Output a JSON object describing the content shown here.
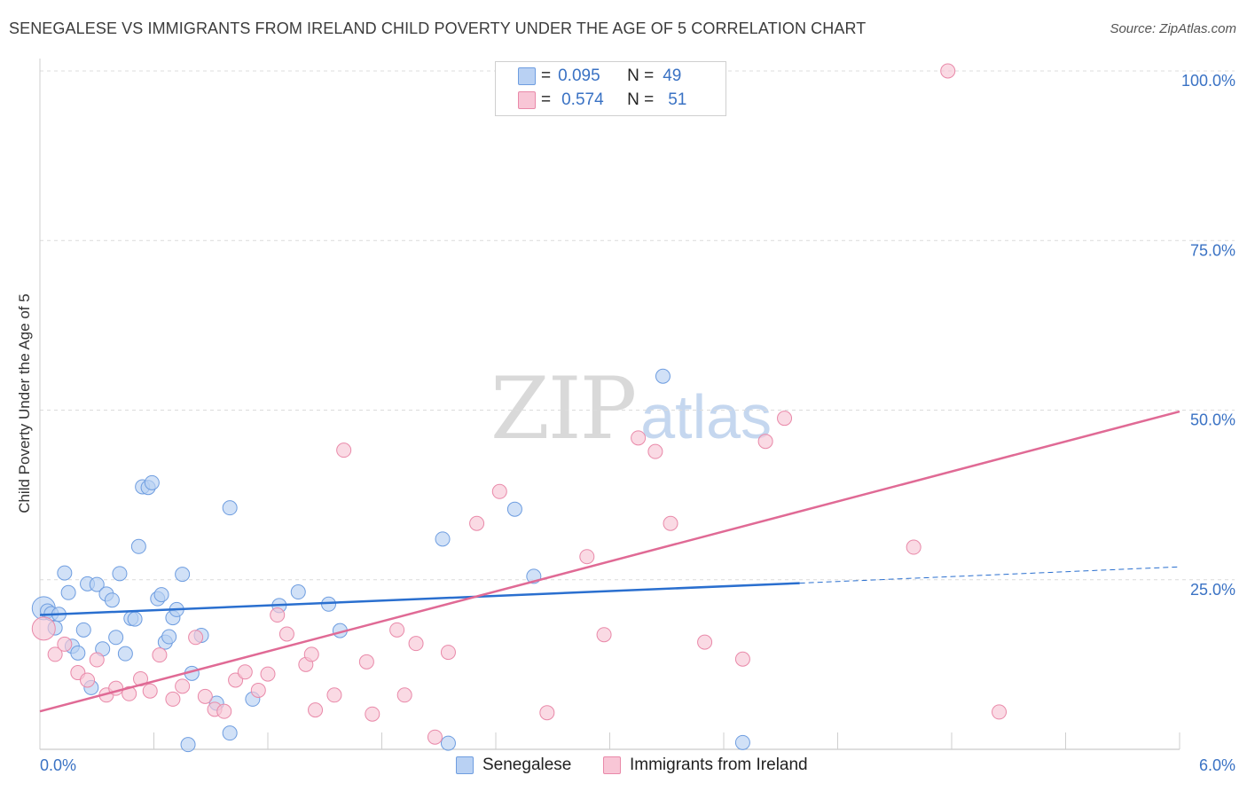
{
  "title": "SENEGALESE VS IMMIGRANTS FROM IRELAND CHILD POVERTY UNDER THE AGE OF 5 CORRELATION CHART",
  "source": "Source: ZipAtlas.com",
  "watermark": {
    "zip": "ZIP",
    "atlas": "atlas"
  },
  "colors": {
    "senegalese_fill": "#b9d1f3",
    "senegalese_stroke": "#6e9de0",
    "senegalese_line": "#2a6fcf",
    "ireland_fill": "#f8c6d6",
    "ireland_stroke": "#e989a9",
    "ireland_line": "#e06a95",
    "tick_label": "#3a72c4",
    "grid": "#dcdcdc"
  },
  "legend": {
    "rows": [
      {
        "r_label": "R =",
        "r_value": "0.095",
        "n_label": "N =",
        "n_value": "49"
      },
      {
        "r_label": "R =",
        "r_value": "0.574",
        "n_label": "N =",
        "n_value": "51"
      }
    ]
  },
  "bottom_legend": {
    "senegalese": "Senegalese",
    "ireland": "Immigrants from Ireland"
  },
  "chart_data": {
    "type": "scatter",
    "title": "SENEGALESE VS IMMIGRANTS FROM IRELAND CHILD POVERTY UNDER THE AGE OF 5 CORRELATION CHART",
    "xlabel": "",
    "ylabel": "Child Poverty Under the Age of 5",
    "xlim": [
      0,
      6
    ],
    "ylim": [
      0,
      100
    ],
    "x_tick_labels": [
      "0.0%",
      "6.0%"
    ],
    "y_ticks": [
      25,
      50,
      75,
      100
    ],
    "y_tick_labels": [
      "25.0%",
      "50.0%",
      "75.0%",
      "100.0%"
    ],
    "grid": true,
    "legend_position": "top-center",
    "series": [
      {
        "name": "Senegalese",
        "r": 0.095,
        "n": 49,
        "trend": {
          "x0": 0.0,
          "y0": 19.8,
          "x1": 4.0,
          "y1": 24.5,
          "dashed_to_x": 6.0,
          "dashed_to_y": 26.9
        },
        "points": [
          [
            0.02,
            20.8
          ],
          [
            0.04,
            20.4
          ],
          [
            0.06,
            20.0
          ],
          [
            0.08,
            17.9
          ],
          [
            0.1,
            19.9
          ],
          [
            0.13,
            26.0
          ],
          [
            0.15,
            23.1
          ],
          [
            0.17,
            15.2
          ],
          [
            0.2,
            14.2
          ],
          [
            0.23,
            17.6
          ],
          [
            0.25,
            24.4
          ],
          [
            0.27,
            9.1
          ],
          [
            0.3,
            24.3
          ],
          [
            0.33,
            14.8
          ],
          [
            0.35,
            22.9
          ],
          [
            0.38,
            22.0
          ],
          [
            0.4,
            16.5
          ],
          [
            0.42,
            25.9
          ],
          [
            0.45,
            14.1
          ],
          [
            0.48,
            19.3
          ],
          [
            0.5,
            19.2
          ],
          [
            0.52,
            29.9
          ],
          [
            0.54,
            38.7
          ],
          [
            0.57,
            38.6
          ],
          [
            0.59,
            39.3
          ],
          [
            0.62,
            22.2
          ],
          [
            0.64,
            22.8
          ],
          [
            0.66,
            15.8
          ],
          [
            0.68,
            16.6
          ],
          [
            0.7,
            19.4
          ],
          [
            0.72,
            20.6
          ],
          [
            0.75,
            25.8
          ],
          [
            0.78,
            0.7
          ],
          [
            0.8,
            11.2
          ],
          [
            0.85,
            16.8
          ],
          [
            0.93,
            6.8
          ],
          [
            1.0,
            35.6
          ],
          [
            1.0,
            2.4
          ],
          [
            1.12,
            7.4
          ],
          [
            1.26,
            21.2
          ],
          [
            1.36,
            23.2
          ],
          [
            1.52,
            21.4
          ],
          [
            1.58,
            17.5
          ],
          [
            2.12,
            31.0
          ],
          [
            2.15,
            0.9
          ],
          [
            2.5,
            35.4
          ],
          [
            2.6,
            25.5
          ],
          [
            3.28,
            55.0
          ],
          [
            3.7,
            1.0
          ]
        ]
      },
      {
        "name": "Immigrants from Ireland",
        "r": 0.574,
        "n": 51,
        "trend": {
          "x0": 0.0,
          "y0": 5.6,
          "x1": 6.0,
          "y1": 49.8
        },
        "points": [
          [
            0.02,
            17.8
          ],
          [
            0.08,
            14.0
          ],
          [
            0.13,
            15.5
          ],
          [
            0.2,
            11.3
          ],
          [
            0.25,
            10.2
          ],
          [
            0.3,
            13.2
          ],
          [
            0.35,
            8.0
          ],
          [
            0.4,
            9.0
          ],
          [
            0.47,
            8.2
          ],
          [
            0.53,
            10.4
          ],
          [
            0.58,
            8.6
          ],
          [
            0.63,
            13.9
          ],
          [
            0.7,
            7.4
          ],
          [
            0.75,
            9.3
          ],
          [
            0.82,
            16.5
          ],
          [
            0.87,
            7.8
          ],
          [
            0.92,
            5.9
          ],
          [
            0.97,
            5.6
          ],
          [
            1.03,
            10.2
          ],
          [
            1.08,
            11.4
          ],
          [
            1.15,
            8.7
          ],
          [
            1.2,
            11.1
          ],
          [
            1.25,
            19.8
          ],
          [
            1.3,
            17.0
          ],
          [
            1.4,
            12.5
          ],
          [
            1.43,
            14.0
          ],
          [
            1.45,
            5.8
          ],
          [
            1.55,
            8.0
          ],
          [
            1.6,
            44.1
          ],
          [
            1.72,
            12.9
          ],
          [
            1.75,
            5.2
          ],
          [
            1.88,
            17.6
          ],
          [
            1.92,
            8.0
          ],
          [
            1.98,
            15.6
          ],
          [
            2.08,
            1.8
          ],
          [
            2.15,
            14.3
          ],
          [
            2.3,
            33.3
          ],
          [
            2.42,
            38.0
          ],
          [
            2.67,
            5.4
          ],
          [
            2.88,
            28.4
          ],
          [
            2.97,
            16.9
          ],
          [
            3.15,
            45.9
          ],
          [
            3.24,
            43.9
          ],
          [
            3.32,
            33.3
          ],
          [
            3.5,
            15.8
          ],
          [
            3.7,
            13.3
          ],
          [
            3.82,
            45.4
          ],
          [
            3.92,
            48.8
          ],
          [
            4.6,
            29.8
          ],
          [
            4.78,
            100.0
          ],
          [
            5.05,
            5.5
          ]
        ]
      }
    ]
  }
}
